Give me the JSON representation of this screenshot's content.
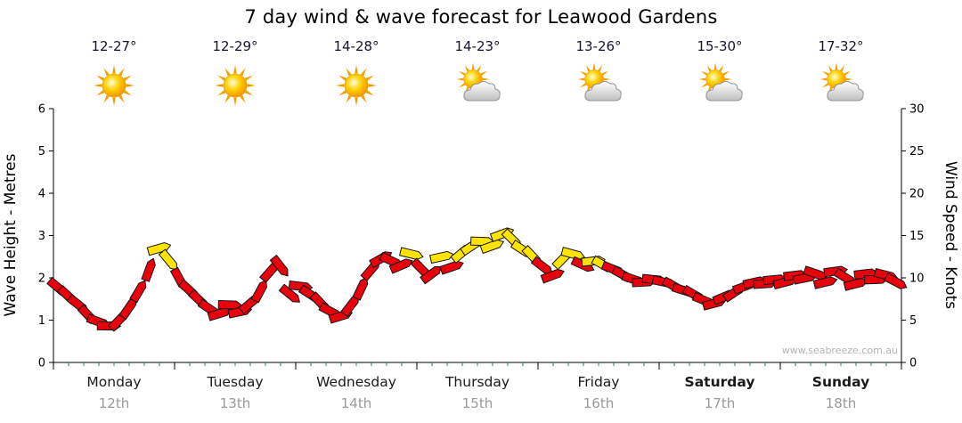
{
  "title": "7 day wind & wave forecast for Leawood Gardens",
  "watermark": "www.seabreeze.com.au",
  "days": [
    {
      "name": "Monday",
      "date": "12th",
      "temp": "12-27°",
      "icon": "sun-icon",
      "bold": false
    },
    {
      "name": "Tuesday",
      "date": "13th",
      "temp": "12-29°",
      "icon": "sun-icon",
      "bold": false
    },
    {
      "name": "Wednesday",
      "date": "14th",
      "temp": "14-28°",
      "icon": "sun-icon",
      "bold": false
    },
    {
      "name": "Thursday",
      "date": "15th",
      "temp": "14-23°",
      "icon": "sun-cloud-icon",
      "bold": false
    },
    {
      "name": "Friday",
      "date": "16th",
      "temp": "13-26°",
      "icon": "sun-cloud-icon",
      "bold": false
    },
    {
      "name": "Saturday",
      "date": "17th",
      "temp": "15-30°",
      "icon": "sun-cloud-icon",
      "bold": true
    },
    {
      "name": "Sunday",
      "date": "18th",
      "temp": "17-32°",
      "icon": "sun-cloud-icon",
      "bold": true
    }
  ],
  "chart_data": {
    "type": "scatter",
    "marker": "wind-arrow",
    "title": "7 day wind & wave forecast for Leawood Gardens",
    "xlabel": "",
    "ylabel_left": "Wave Height - Metres",
    "ylabel_right": "Wind Speed - Knots",
    "ylim_left": [
      0,
      6
    ],
    "ylim_right": [
      0,
      30
    ],
    "yticks_left": [
      0,
      1,
      2,
      3,
      4,
      5,
      6
    ],
    "yticks_right": [
      0,
      5,
      10,
      15,
      20,
      25,
      30
    ],
    "categories": [
      "Monday",
      "Tuesday",
      "Wednesday",
      "Thursday",
      "Friday",
      "Saturday",
      "Sunday"
    ],
    "points_per_day": 12,
    "units": "knots",
    "grid": false,
    "legend": false,
    "marker_colors": {
      "R": "#e8000d",
      "Y": "#ffe400"
    },
    "points": [
      [
        8.8,
        "R"
      ],
      [
        7.8,
        "R"
      ],
      [
        6.8,
        "R"
      ],
      [
        5.5,
        "R"
      ],
      [
        4.8,
        "R"
      ],
      [
        4.3,
        "R"
      ],
      [
        5.0,
        "R"
      ],
      [
        6.5,
        "R"
      ],
      [
        8.5,
        "R"
      ],
      [
        11.0,
        "R"
      ],
      [
        13.5,
        "Y"
      ],
      [
        12.0,
        "Y"
      ],
      [
        9.8,
        "R"
      ],
      [
        8.5,
        "R"
      ],
      [
        7.3,
        "R"
      ],
      [
        6.3,
        "R"
      ],
      [
        5.8,
        "R"
      ],
      [
        6.8,
        "R"
      ],
      [
        6.0,
        "R"
      ],
      [
        7.0,
        "R"
      ],
      [
        8.5,
        "R"
      ],
      [
        10.8,
        "R"
      ],
      [
        11.3,
        "R"
      ],
      [
        8.0,
        "R"
      ],
      [
        9.0,
        "R"
      ],
      [
        8.0,
        "R"
      ],
      [
        7.0,
        "R"
      ],
      [
        6.0,
        "R"
      ],
      [
        5.5,
        "R"
      ],
      [
        6.8,
        "R"
      ],
      [
        8.8,
        "R"
      ],
      [
        11.0,
        "R"
      ],
      [
        12.3,
        "R"
      ],
      [
        12.0,
        "R"
      ],
      [
        11.5,
        "R"
      ],
      [
        12.8,
        "Y"
      ],
      [
        11.0,
        "R"
      ],
      [
        10.5,
        "R"
      ],
      [
        12.5,
        "Y"
      ],
      [
        11.3,
        "R"
      ],
      [
        13.0,
        "Y"
      ],
      [
        13.8,
        "Y"
      ],
      [
        14.3,
        "Y"
      ],
      [
        13.8,
        "Y"
      ],
      [
        15.2,
        "Y"
      ],
      [
        14.5,
        "Y"
      ],
      [
        13.3,
        "Y"
      ],
      [
        12.5,
        "Y"
      ],
      [
        11.3,
        "R"
      ],
      [
        10.3,
        "R"
      ],
      [
        12.3,
        "Y"
      ],
      [
        12.8,
        "Y"
      ],
      [
        11.5,
        "R"
      ],
      [
        12.0,
        "Y"
      ],
      [
        11.5,
        "Y"
      ],
      [
        11.0,
        "R"
      ],
      [
        10.3,
        "R"
      ],
      [
        9.8,
        "R"
      ],
      [
        9.5,
        "R"
      ],
      [
        9.8,
        "R"
      ],
      [
        9.5,
        "R"
      ],
      [
        9.0,
        "R"
      ],
      [
        8.5,
        "R"
      ],
      [
        8.0,
        "R"
      ],
      [
        7.3,
        "R"
      ],
      [
        7.0,
        "R"
      ],
      [
        7.8,
        "R"
      ],
      [
        8.3,
        "R"
      ],
      [
        9.0,
        "R"
      ],
      [
        9.5,
        "R"
      ],
      [
        9.3,
        "R"
      ],
      [
        9.8,
        "R"
      ],
      [
        9.5,
        "R"
      ],
      [
        10.3,
        "R"
      ],
      [
        10.0,
        "R"
      ],
      [
        10.5,
        "R"
      ],
      [
        9.5,
        "R"
      ],
      [
        10.8,
        "R"
      ],
      [
        10.0,
        "R"
      ],
      [
        9.3,
        "R"
      ],
      [
        10.5,
        "R"
      ],
      [
        9.8,
        "R"
      ],
      [
        10.3,
        "R"
      ],
      [
        9.5,
        "R"
      ]
    ]
  }
}
